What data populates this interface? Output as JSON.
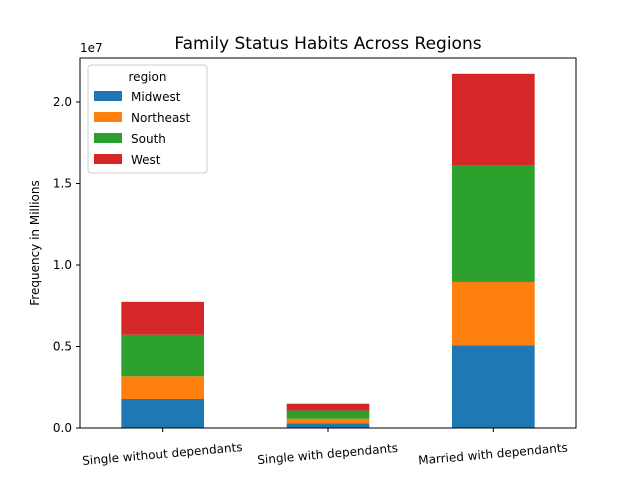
{
  "chart_data": {
    "type": "bar",
    "stacked": true,
    "title": "Family Status Habits Across Regions",
    "xlabel": "",
    "ylabel": "Frequency in Millions",
    "offset_text": "1e7",
    "categories": [
      "Single without dependants",
      "Single with dependants",
      "Married with dependants"
    ],
    "series": [
      {
        "name": "Midwest",
        "color": "#1f77b4",
        "values": [
          1780000,
          290000,
          5080000
        ]
      },
      {
        "name": "Northeast",
        "color": "#ff7f0e",
        "values": [
          1390000,
          280000,
          3880000
        ]
      },
      {
        "name": "South",
        "color": "#2ca02c",
        "values": [
          2550000,
          500000,
          7150000
        ]
      },
      {
        "name": "West",
        "color": "#d62728",
        "values": [
          2020000,
          420000,
          5620000
        ]
      }
    ],
    "ylim": [
      0,
      22700000
    ],
    "yticks": [
      0,
      5000000,
      10000000,
      15000000,
      20000000
    ],
    "ytick_labels": [
      "0.0",
      "0.5",
      "1.0",
      "1.5",
      "2.0"
    ],
    "grid": false,
    "legend": {
      "title": "region",
      "placement": "top-left"
    }
  }
}
